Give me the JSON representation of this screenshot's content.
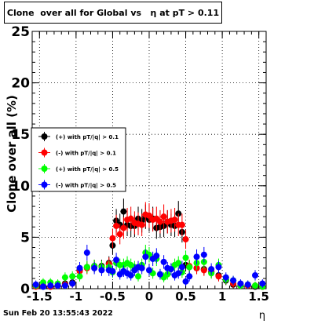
{
  "title": "Clone  over all for Global vs   η at pT > 0.11",
  "footer": "Sun Feb 20 13:55:43 2022",
  "chart_data": {
    "type": "scatter",
    "title": "Clone  over all for Global vs   η at pT > 0.11",
    "xlabel": "η",
    "ylabel": "Clone  over all (%)",
    "xlim": [
      -1.6,
      1.6
    ],
    "ylim": [
      0,
      25
    ],
    "x_ticks": [
      "-1.5",
      "-1",
      "-0.5",
      "0",
      "0.5",
      "1",
      "1.5"
    ],
    "y_ticks": [
      "0",
      "5",
      "10",
      "15",
      "20",
      "25"
    ],
    "grid": true,
    "legend_position": "middle-left",
    "series": [
      {
        "name": "(+) with pT/|q| > 0.1",
        "color": "#000000",
        "x": [
          -1.55,
          -1.45,
          -1.35,
          -1.25,
          -1.15,
          -1.05,
          -0.95,
          -0.85,
          -0.75,
          -0.65,
          -0.55,
          -0.5,
          -0.45,
          -0.4,
          -0.35,
          -0.3,
          -0.25,
          -0.2,
          -0.15,
          -0.1,
          -0.05,
          0,
          0.05,
          0.1,
          0.15,
          0.2,
          0.25,
          0.3,
          0.35,
          0.4,
          0.45,
          0.5,
          0.55,
          0.65,
          0.75,
          0.85,
          0.95,
          1.05,
          1.15,
          1.25,
          1.35,
          1.45,
          1.55
        ],
        "y": [
          0.3,
          0.2,
          0.2,
          0.3,
          0.5,
          0.6,
          1.8,
          2.1,
          2.2,
          2.2,
          2.5,
          4.2,
          6.6,
          6.2,
          7.5,
          6.2,
          6.1,
          6.1,
          6.8,
          6.6,
          7.0,
          6.7,
          6.8,
          5.9,
          6.0,
          6.1,
          6.5,
          6.2,
          6.1,
          7.3,
          5.5,
          2.3,
          2.1,
          2.0,
          1.9,
          1.6,
          1.3,
          0.8,
          0.4,
          0.3,
          0.3,
          0.2,
          0.2
        ]
      },
      {
        "name": "(-) with pT/|q| > 0.1",
        "color": "#ff0000",
        "x": [
          -1.55,
          -1.45,
          -1.35,
          -1.25,
          -1.15,
          -1.05,
          -0.95,
          -0.85,
          -0.75,
          -0.65,
          -0.55,
          -0.5,
          -0.45,
          -0.4,
          -0.35,
          -0.3,
          -0.25,
          -0.2,
          -0.15,
          -0.1,
          -0.05,
          0,
          0.05,
          0.1,
          0.15,
          0.2,
          0.25,
          0.3,
          0.35,
          0.4,
          0.45,
          0.5,
          0.55,
          0.65,
          0.75,
          0.85,
          0.95,
          1.05,
          1.15,
          1.25,
          1.35,
          1.45,
          1.55
        ],
        "y": [
          0.2,
          0.3,
          0.2,
          0.3,
          0.4,
          0.5,
          1.7,
          2.0,
          2.2,
          2.1,
          2.4,
          4.9,
          6.1,
          5.3,
          5.9,
          6.7,
          6.8,
          6.4,
          6.3,
          6.2,
          7.2,
          7.1,
          6.7,
          6.8,
          6.5,
          7.0,
          6.5,
          6.6,
          6.7,
          6.2,
          6.2,
          4.8,
          2.2,
          2.0,
          1.8,
          1.7,
          1.2,
          0.9,
          0.5,
          0.4,
          0.3,
          0.3,
          0.2
        ]
      },
      {
        "name": "(+) with pT/|q| > 0.5",
        "color": "#00ff00",
        "x": [
          -1.55,
          -1.45,
          -1.35,
          -1.25,
          -1.15,
          -1.05,
          -0.95,
          -0.85,
          -0.75,
          -0.65,
          -0.55,
          -0.5,
          -0.45,
          -0.4,
          -0.35,
          -0.3,
          -0.25,
          -0.2,
          -0.15,
          -0.1,
          -0.05,
          0,
          0.05,
          0.1,
          0.15,
          0.2,
          0.25,
          0.3,
          0.35,
          0.4,
          0.45,
          0.5,
          0.55,
          0.65,
          0.75,
          0.85,
          0.95,
          1.05,
          1.15,
          1.25,
          1.35,
          1.45,
          1.55
        ],
        "y": [
          0.3,
          0.6,
          0.6,
          0.5,
          1.1,
          1.2,
          1.2,
          2.1,
          2.2,
          2.1,
          2.1,
          1.6,
          2.5,
          2.3,
          2.3,
          2.5,
          2.3,
          2.1,
          1.2,
          2.3,
          3.5,
          3.3,
          1.5,
          2.9,
          1.4,
          1.1,
          1.4,
          1.9,
          2.3,
          2.5,
          1.6,
          3.0,
          2.1,
          2.5,
          2.6,
          1.5,
          2.3,
          0.9,
          0.8,
          0.3,
          0.4,
          0.3,
          0.2
        ]
      },
      {
        "name": "(-) with pT/|q| > 0.5",
        "color": "#0000ff",
        "x": [
          -1.55,
          -1.45,
          -1.35,
          -1.25,
          -1.15,
          -1.05,
          -0.95,
          -0.85,
          -0.75,
          -0.65,
          -0.55,
          -0.5,
          -0.45,
          -0.4,
          -0.35,
          -0.3,
          -0.25,
          -0.2,
          -0.15,
          -0.1,
          -0.05,
          0,
          0.05,
          0.1,
          0.15,
          0.2,
          0.25,
          0.3,
          0.35,
          0.4,
          0.45,
          0.5,
          0.55,
          0.65,
          0.75,
          0.85,
          0.95,
          1.05,
          1.15,
          1.25,
          1.35,
          1.45,
          1.55
        ],
        "y": [
          0.4,
          0.2,
          0.3,
          0.3,
          0.3,
          0.5,
          2.0,
          3.5,
          2.0,
          1.8,
          1.8,
          1.7,
          2.8,
          1.4,
          1.7,
          1.5,
          1.3,
          1.8,
          2.1,
          2.0,
          3.1,
          1.8,
          2.9,
          3.2,
          1.4,
          2.6,
          2.0,
          1.9,
          1.3,
          1.5,
          2.1,
          0.7,
          1.2,
          3.1,
          3.3,
          1.9,
          2.1,
          1.1,
          0.8,
          0.5,
          0.4,
          1.3,
          0.5
        ]
      }
    ]
  }
}
